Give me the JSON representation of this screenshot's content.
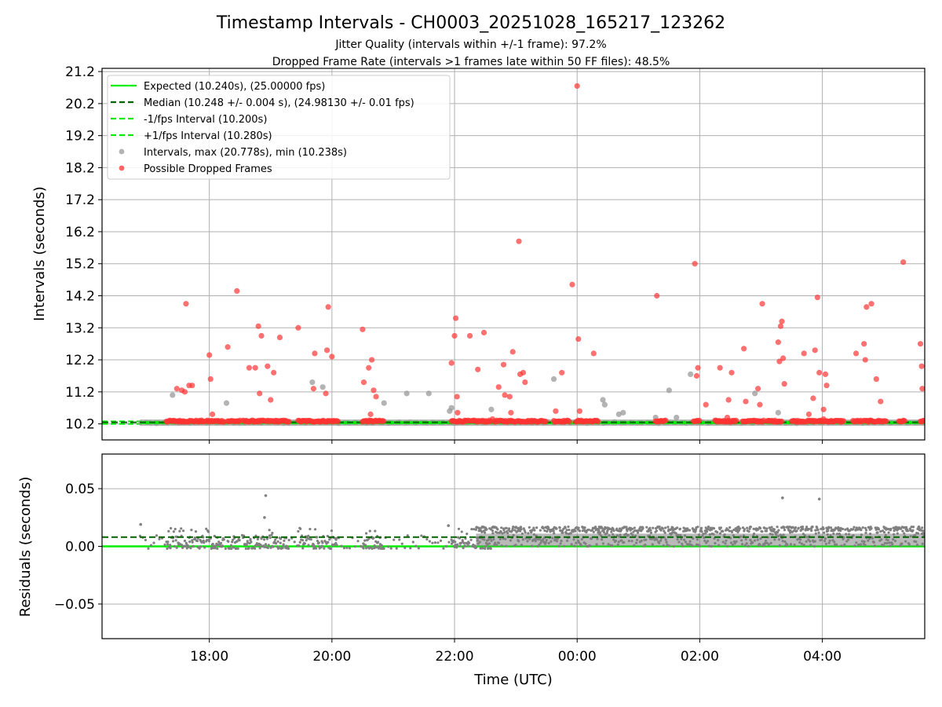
{
  "chart_data": {
    "type": "scatter",
    "title": "Timestamp Intervals - CH0003_20251028_165217_123262",
    "subtitle_1": "Jitter Quality (intervals within +/-1 frame): 97.2%",
    "subtitle_2": "Dropped Frame Rate (intervals >1 frames late within 50 FF files): 48.5%",
    "xlabel": "Time (UTC)",
    "x_tick_labels": [
      "18:00",
      "20:00",
      "22:00",
      "00:00",
      "02:00",
      "04:00"
    ],
    "x_ticks_hours": [
      18,
      20,
      22,
      24,
      26,
      28
    ],
    "x_range_hours": [
      16.25,
      29.67
    ],
    "data_start_hours": 16.87,
    "top_panel": {
      "ylabel": "Intervals (seconds)",
      "ylim": [
        9.7,
        21.3
      ],
      "y_ticks": [
        10.2,
        11.2,
        12.2,
        13.2,
        14.2,
        15.2,
        16.2,
        17.2,
        18.2,
        19.2,
        20.2,
        21.2
      ],
      "y_tick_labels": [
        "10.2",
        "11.2",
        "12.2",
        "13.2",
        "14.2",
        "15.2",
        "16.2",
        "17.2",
        "18.2",
        "19.2",
        "20.2",
        "21.2"
      ],
      "grid": true,
      "legend_position": "upper-left",
      "legend": [
        {
          "label": "Expected (10.240s), (25.00000 fps)",
          "style": "solid",
          "color": "#00ee00"
        },
        {
          "label": "Median (10.248 +/- 0.004 s), (24.98130 +/- 0.01 fps)",
          "style": "dashed",
          "color": "#006400"
        },
        {
          "label": "-1/fps Interval (10.200s)",
          "style": "dashed",
          "color": "#00ee00"
        },
        {
          "label": "+1/fps Interval (10.280s)",
          "style": "dashed",
          "color": "#00ee00"
        },
        {
          "label": "Intervals, max (20.778s), min (10.238s)",
          "style": "dot",
          "color": "#999999"
        },
        {
          "label": "Possible Dropped Frames",
          "style": "dot",
          "color": "#ff3333"
        }
      ],
      "lines": {
        "expected": 10.24,
        "median": 10.248,
        "minus_one": 10.2,
        "plus_one": 10.28
      },
      "dropped_frames": [
        [
          17.47,
          11.3
        ],
        [
          17.55,
          11.25
        ],
        [
          17.6,
          11.2
        ],
        [
          17.62,
          13.95
        ],
        [
          17.67,
          11.4
        ],
        [
          17.72,
          11.4
        ],
        [
          18.0,
          12.35
        ],
        [
          18.02,
          11.6
        ],
        [
          18.05,
          10.5
        ],
        [
          18.3,
          12.6
        ],
        [
          18.45,
          14.35
        ],
        [
          18.65,
          11.95
        ],
        [
          18.75,
          11.95
        ],
        [
          18.8,
          13.25
        ],
        [
          18.82,
          11.15
        ],
        [
          18.85,
          12.95
        ],
        [
          18.95,
          12.0
        ],
        [
          19.0,
          10.95
        ],
        [
          19.05,
          11.8
        ],
        [
          19.15,
          12.9
        ],
        [
          19.45,
          13.2
        ],
        [
          19.7,
          11.3
        ],
        [
          19.72,
          12.4
        ],
        [
          19.9,
          11.15
        ],
        [
          19.92,
          12.5
        ],
        [
          19.94,
          13.85
        ],
        [
          20.0,
          12.3
        ],
        [
          20.5,
          13.15
        ],
        [
          20.52,
          11.5
        ],
        [
          20.6,
          11.95
        ],
        [
          20.63,
          10.5
        ],
        [
          20.65,
          12.2
        ],
        [
          20.68,
          11.25
        ],
        [
          20.72,
          11.05
        ],
        [
          21.95,
          12.1
        ],
        [
          22.0,
          12.95
        ],
        [
          22.02,
          13.5
        ],
        [
          22.04,
          11.05
        ],
        [
          22.05,
          10.55
        ],
        [
          22.25,
          12.95
        ],
        [
          22.38,
          11.9
        ],
        [
          22.48,
          13.05
        ],
        [
          22.62,
          10.35
        ],
        [
          22.72,
          11.35
        ],
        [
          22.8,
          12.05
        ],
        [
          22.82,
          11.1
        ],
        [
          22.9,
          11.05
        ],
        [
          22.92,
          10.55
        ],
        [
          22.95,
          12.45
        ],
        [
          23.05,
          15.9
        ],
        [
          23.07,
          11.75
        ],
        [
          23.12,
          11.8
        ],
        [
          23.15,
          11.5
        ],
        [
          23.65,
          10.6
        ],
        [
          23.75,
          11.8
        ],
        [
          23.92,
          14.55
        ],
        [
          24.0,
          20.75
        ],
        [
          24.02,
          12.85
        ],
        [
          24.04,
          10.6
        ],
        [
          24.27,
          12.4
        ],
        [
          25.3,
          14.2
        ],
        [
          25.92,
          15.2
        ],
        [
          25.95,
          11.7
        ],
        [
          25.97,
          11.95
        ],
        [
          26.1,
          10.8
        ],
        [
          26.33,
          11.95
        ],
        [
          26.45,
          10.4
        ],
        [
          26.47,
          10.95
        ],
        [
          26.52,
          11.8
        ],
        [
          26.72,
          12.55
        ],
        [
          26.75,
          10.9
        ],
        [
          26.95,
          11.3
        ],
        [
          26.98,
          10.8
        ],
        [
          27.02,
          13.95
        ],
        [
          27.28,
          12.75
        ],
        [
          27.3,
          12.15
        ],
        [
          27.32,
          13.25
        ],
        [
          27.34,
          13.4
        ],
        [
          27.36,
          12.25
        ],
        [
          27.38,
          11.45
        ],
        [
          27.7,
          12.4
        ],
        [
          27.78,
          10.5
        ],
        [
          27.85,
          11.0
        ],
        [
          27.88,
          12.5
        ],
        [
          27.92,
          14.15
        ],
        [
          27.95,
          11.8
        ],
        [
          28.02,
          10.65
        ],
        [
          28.05,
          11.75
        ],
        [
          28.07,
          11.4
        ],
        [
          28.02,
          10.35
        ],
        [
          28.55,
          12.4
        ],
        [
          28.68,
          12.7
        ],
        [
          28.7,
          12.2
        ],
        [
          28.72,
          13.85
        ],
        [
          28.8,
          13.95
        ],
        [
          28.88,
          11.6
        ],
        [
          28.95,
          10.9
        ],
        [
          29.32,
          15.25
        ],
        [
          29.6,
          12.7
        ],
        [
          29.62,
          12.0
        ],
        [
          29.63,
          11.3
        ]
      ],
      "dropped_clusters": [
        [
          17.3,
          17.93
        ],
        [
          17.95,
          18.25
        ],
        [
          18.3,
          18.5
        ],
        [
          18.55,
          18.9
        ],
        [
          18.92,
          19.3
        ],
        [
          19.45,
          19.65
        ],
        [
          19.68,
          19.88
        ],
        [
          19.9,
          20.1
        ],
        [
          20.5,
          20.85
        ],
        [
          21.95,
          22.25
        ],
        [
          22.28,
          22.6
        ],
        [
          22.65,
          23.0
        ],
        [
          23.02,
          23.5
        ],
        [
          23.62,
          23.88
        ],
        [
          23.98,
          24.35
        ],
        [
          25.28,
          25.45
        ],
        [
          25.9,
          26.0
        ],
        [
          26.25,
          26.6
        ],
        [
          26.7,
          27.05
        ],
        [
          27.1,
          27.35
        ],
        [
          27.5,
          27.72
        ],
        [
          27.75,
          28.35
        ],
        [
          28.5,
          28.65
        ],
        [
          28.68,
          29.05
        ],
        [
          29.25,
          29.35
        ],
        [
          29.6,
          29.67
        ]
      ],
      "normal_outliers": [
        [
          17.4,
          11.1
        ],
        [
          18.28,
          10.85
        ],
        [
          19.68,
          11.5
        ],
        [
          19.85,
          11.35
        ],
        [
          20.85,
          10.85
        ],
        [
          21.22,
          11.15
        ],
        [
          21.58,
          11.15
        ],
        [
          21.92,
          10.6
        ],
        [
          21.95,
          10.7
        ],
        [
          22.6,
          10.65
        ],
        [
          23.62,
          11.6
        ],
        [
          24.42,
          10.95
        ],
        [
          24.45,
          10.8
        ],
        [
          24.68,
          10.5
        ],
        [
          24.75,
          10.55
        ],
        [
          25.28,
          10.4
        ],
        [
          25.5,
          11.25
        ],
        [
          25.62,
          10.4
        ],
        [
          25.85,
          11.75
        ],
        [
          26.9,
          11.15
        ],
        [
          27.28,
          10.55
        ]
      ]
    },
    "bottom_panel": {
      "ylabel": "Residuals (seconds)",
      "ylim": [
        -0.08,
        0.08
      ],
      "y_ticks": [
        0.05,
        0.0,
        -0.05
      ],
      "y_tick_labels": [
        "0.05",
        "0.00",
        "−0.05"
      ],
      "grid": true,
      "lines": {
        "expected": 0.0,
        "median": 0.008
      },
      "outliers": [
        [
          16.88,
          0.019
        ],
        [
          18.9,
          0.025
        ],
        [
          18.92,
          0.044
        ],
        [
          21.9,
          0.018
        ],
        [
          27.35,
          0.042
        ],
        [
          27.95,
          0.041
        ]
      ],
      "early_band": [
        -0.002,
        0.016
      ],
      "late_band": [
        0.0,
        0.017
      ],
      "transition_hours": 22.35
    },
    "colors": {
      "expected": "#00ee00",
      "median": "#006400",
      "dropped": "#ff3333",
      "interval": "#999999",
      "residual": "#808080",
      "grid": "#b0b0b0"
    }
  }
}
